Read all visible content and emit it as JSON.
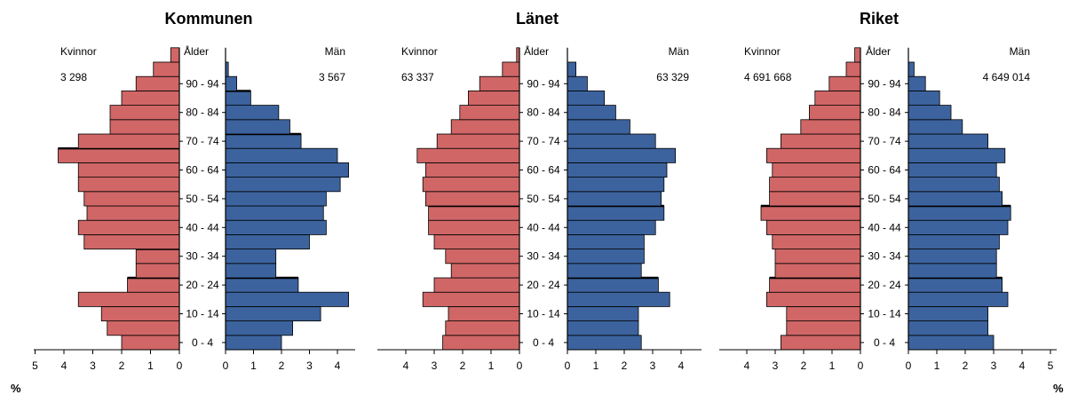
{
  "colors": {
    "women": "#D06666",
    "men": "#3C639E",
    "outline": "#000000"
  },
  "age_labels": [
    "0 - 4",
    "10 - 14",
    "20 - 24",
    "30 - 34",
    "40 - 44",
    "50 - 54",
    "60 - 64",
    "70 - 74",
    "80 - 84",
    "90 - 94"
  ],
  "labels": {
    "women": "Kvinnor",
    "age": "Ålder",
    "men": "Män",
    "percent": "%"
  },
  "chart_data": [
    {
      "type": "bar",
      "title": "Kommunen",
      "women_total": "3 298",
      "men_total": "3 567",
      "ticks_women": [
        5,
        4,
        3,
        2,
        1,
        0
      ],
      "ticks_men": [
        0,
        1,
        2,
        3,
        4
      ],
      "xlim": [
        0,
        5
      ],
      "women": [
        2.0,
        2.5,
        2.7,
        3.5,
        1.8,
        1.5,
        1.5,
        3.3,
        3.5,
        3.2,
        3.3,
        3.5,
        3.5,
        4.2,
        3.5,
        2.4,
        2.4,
        2.0,
        1.5,
        0.9,
        0.3
      ],
      "men": [
        2.0,
        2.4,
        3.4,
        4.4,
        2.6,
        1.8,
        1.8,
        3.0,
        3.6,
        3.5,
        3.6,
        4.1,
        4.4,
        4.0,
        2.7,
        2.3,
        1.9,
        0.9,
        0.4,
        0.1,
        0.0
      ],
      "men_marker": [
        false,
        false,
        false,
        false,
        true,
        false,
        false,
        false,
        false,
        false,
        false,
        false,
        false,
        false,
        true,
        false,
        false,
        true,
        false,
        false,
        false
      ],
      "women_marker": [
        false,
        false,
        false,
        false,
        true,
        false,
        true,
        false,
        false,
        false,
        false,
        false,
        false,
        true,
        false,
        false,
        false,
        false,
        false,
        false,
        false
      ]
    },
    {
      "type": "bar",
      "title": "Länet",
      "women_total": "63 337",
      "men_total": "63 329",
      "ticks_women": [
        4,
        3,
        2,
        1,
        0
      ],
      "ticks_men": [
        0,
        1,
        2,
        3,
        4
      ],
      "xlim": [
        0,
        5
      ],
      "women": [
        2.7,
        2.6,
        2.5,
        3.4,
        3.0,
        2.4,
        2.6,
        3.0,
        3.2,
        3.2,
        3.3,
        3.4,
        3.3,
        3.6,
        2.9,
        2.4,
        2.1,
        1.8,
        1.4,
        0.6,
        0.1
      ],
      "men": [
        2.6,
        2.5,
        2.5,
        3.6,
        3.2,
        2.6,
        2.7,
        2.7,
        3.1,
        3.4,
        3.3,
        3.4,
        3.5,
        3.8,
        3.1,
        2.2,
        1.7,
        1.3,
        0.7,
        0.3,
        0.0
      ],
      "men_marker": [
        false,
        false,
        false,
        false,
        true,
        false,
        false,
        false,
        false,
        true,
        false,
        false,
        false,
        false,
        false,
        false,
        false,
        false,
        false,
        false,
        false
      ],
      "women_marker": [
        false,
        false,
        false,
        false,
        false,
        false,
        false,
        false,
        false,
        true,
        false,
        false,
        false,
        false,
        false,
        false,
        false,
        false,
        false,
        false,
        false
      ]
    },
    {
      "type": "bar",
      "title": "Riket",
      "women_total": "4 691 668",
      "men_total": "4 649 014",
      "ticks_women": [
        4,
        3,
        2,
        1,
        0
      ],
      "ticks_men": [
        0,
        1,
        2,
        3,
        4,
        5
      ],
      "xlim": [
        0,
        5
      ],
      "women": [
        2.8,
        2.6,
        2.6,
        3.3,
        3.2,
        3.0,
        3.0,
        3.1,
        3.3,
        3.5,
        3.2,
        3.2,
        3.1,
        3.3,
        2.8,
        2.1,
        1.8,
        1.6,
        1.1,
        0.5,
        0.2
      ],
      "men": [
        3.0,
        2.8,
        2.8,
        3.5,
        3.3,
        3.1,
        3.1,
        3.2,
        3.5,
        3.6,
        3.3,
        3.2,
        3.1,
        3.4,
        2.8,
        1.9,
        1.5,
        1.1,
        0.6,
        0.2,
        0.0
      ],
      "men_marker": [
        false,
        false,
        false,
        false,
        true,
        false,
        false,
        false,
        false,
        true,
        false,
        false,
        false,
        false,
        false,
        false,
        false,
        false,
        false,
        false,
        false
      ],
      "women_marker": [
        false,
        false,
        false,
        false,
        true,
        false,
        false,
        false,
        false,
        true,
        false,
        false,
        false,
        false,
        false,
        false,
        false,
        false,
        false,
        false,
        false
      ]
    }
  ]
}
